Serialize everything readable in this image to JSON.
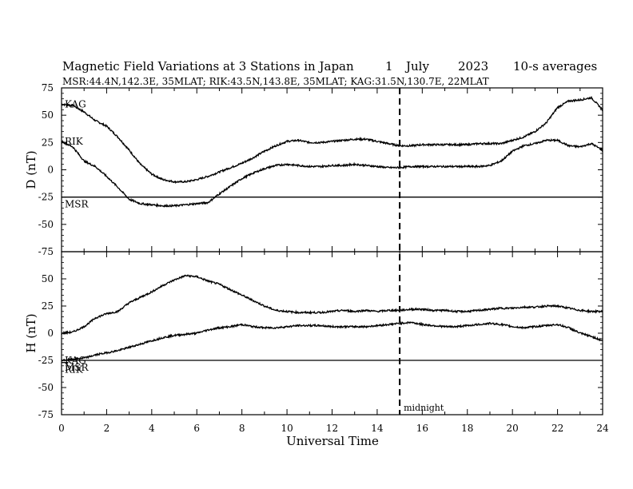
{
  "chart_data": {
    "type": "line",
    "title": "Magnetic Field Variations at 3 Stations in Japan",
    "date": {
      "day": "1",
      "month": "July",
      "year": "2023"
    },
    "resolution": "10-s averages",
    "subtitle": "MSR:44.4N,142.3E, 35MLAT;  RIK:43.5N,143.8E, 35MLAT;  KAG:31.5N,130.7E, 22MLAT",
    "xlabel": "Universal Time",
    "xlim": [
      0,
      24
    ],
    "x_ticks": [
      "0",
      "2",
      "4",
      "6",
      "8",
      "10",
      "12",
      "14",
      "16",
      "18",
      "20",
      "22",
      "24"
    ],
    "midnight": {
      "x": 15,
      "label": "midnight"
    },
    "panels": [
      {
        "ylabel": "D (nT)",
        "ylim": [
          -75,
          75
        ],
        "y_ticks": [
          "75",
          "50",
          "25",
          "0",
          "-25",
          "-50",
          "-75"
        ],
        "series": [
          {
            "name": "KAG",
            "x": [
              0,
              0.5,
              1,
              1.5,
              2,
              2.5,
              3,
              3.5,
              4,
              4.5,
              5,
              5.5,
              6,
              6.5,
              7,
              7.5,
              8,
              8.5,
              9,
              9.5,
              10,
              10.5,
              11,
              11.5,
              12,
              12.5,
              13,
              13.5,
              14,
              14.5,
              15,
              15.5,
              16,
              16.5,
              17,
              17.5,
              18,
              18.5,
              19,
              19.5,
              20,
              20.5,
              21,
              21.5,
              22,
              22.5,
              23,
              23.5,
              24
            ],
            "y": [
              60,
              59,
              53,
              45,
              40,
              30,
              18,
              5,
              -4,
              -9,
              -11,
              -11,
              -9,
              -6,
              -2,
              2,
              6,
              11,
              17,
              22,
              26,
              27,
              25,
              25,
              26,
              27,
              28,
              28,
              26,
              24,
              22,
              22,
              23,
              23,
              23,
              23,
              23,
              24,
              24,
              24,
              27,
              30,
              35,
              43,
              57,
              63,
              64,
              66,
              55
            ]
          },
          {
            "name": "RIK",
            "x": [
              0,
              0.5,
              1,
              1.5,
              2,
              2.5,
              3,
              3.5,
              4,
              4.5,
              5,
              5.5,
              6,
              6.5,
              7,
              7.5,
              8,
              8.5,
              9,
              9.5,
              10,
              10.5,
              11,
              11.5,
              12,
              12.5,
              13,
              13.5,
              14,
              14.5,
              15,
              15.5,
              16,
              16.5,
              17,
              17.5,
              18,
              18.5,
              19,
              19.5,
              20,
              20.5,
              21,
              21.5,
              22,
              22.5,
              23,
              23.5,
              24
            ],
            "y": [
              26,
              21,
              8,
              3,
              -6,
              -16,
              -27,
              -31,
              -32,
              -33,
              -33,
              -32,
              -31,
              -30,
              -22,
              -15,
              -8,
              -3,
              1,
              4,
              5,
              4,
              3,
              3,
              4,
              4,
              5,
              4,
              3,
              2,
              2,
              3,
              3,
              3,
              3,
              3,
              3,
              3,
              4,
              8,
              17,
              22,
              24,
              27,
              27,
              22,
              21,
              24,
              18
            ]
          },
          {
            "name": "MSR",
            "x": [
              0,
              24
            ],
            "y": [
              -25,
              -25
            ]
          }
        ]
      },
      {
        "ylabel": "H (nT)",
        "ylim": [
          -75,
          75
        ],
        "y_ticks": [
          "75",
          "50",
          "25",
          "0",
          "-25",
          "-50",
          "-75"
        ],
        "series": [
          {
            "name": "",
            "x": [
              0,
              0.5,
              1,
              1.5,
              2,
              2.5,
              3,
              3.5,
              4,
              4.5,
              5,
              5.5,
              6,
              6.5,
              7,
              7.5,
              8,
              8.5,
              9,
              9.5,
              10,
              10.5,
              11,
              11.5,
              12,
              12.5,
              13,
              13.5,
              14,
              14.5,
              15,
              15.5,
              16,
              16.5,
              17,
              17.5,
              18,
              18.5,
              19,
              19.5,
              20,
              20.5,
              21,
              21.5,
              22,
              22.5,
              23,
              23.5,
              24
            ],
            "y": [
              0,
              1,
              6,
              14,
              18,
              20,
              28,
              33,
              38,
              44,
              49,
              53,
              52,
              48,
              45,
              40,
              35,
              30,
              25,
              21,
              20,
              19,
              19,
              19,
              20,
              21,
              20,
              21,
              20,
              21,
              21,
              22,
              22,
              21,
              21,
              20,
              20,
              21,
              22,
              23,
              23,
              24,
              24,
              25,
              25,
              23,
              21,
              20,
              20
            ]
          },
          {
            "name": "KAG",
            "x": [
              0,
              0.5,
              1,
              1.5,
              2,
              2.5,
              3,
              3.5,
              4,
              4.5,
              5,
              5.5,
              6,
              6.5,
              7,
              7.5,
              8,
              8.5,
              9,
              9.5,
              10,
              10.5,
              11,
              11.5,
              12,
              12.5,
              13,
              13.5,
              14,
              14.5,
              15,
              15.5,
              16,
              16.5,
              17,
              17.5,
              18,
              18.5,
              19,
              19.5,
              20,
              20.5,
              21,
              21.5,
              22,
              22.5,
              23,
              23.5,
              24
            ],
            "y": [
              -25,
              -24,
              -23,
              -20,
              -18,
              -16,
              -13,
              -10,
              -7,
              -4,
              -2,
              -1,
              0,
              3,
              5,
              6,
              8,
              6,
              5,
              5,
              6,
              7,
              7,
              7,
              6,
              6,
              6,
              6,
              7,
              8,
              9,
              10,
              8,
              7,
              6,
              6,
              7,
              8,
              9,
              8,
              6,
              5,
              6,
              7,
              8,
              5,
              0,
              -3,
              -7
            ]
          },
          {
            "name": "MSR",
            "x": [
              0,
              24
            ],
            "y": [
              -25,
              -25
            ]
          },
          {
            "name": "RIK",
            "x": [
              0,
              0.3
            ],
            "y": [
              -27,
              -27
            ]
          }
        ]
      }
    ]
  }
}
